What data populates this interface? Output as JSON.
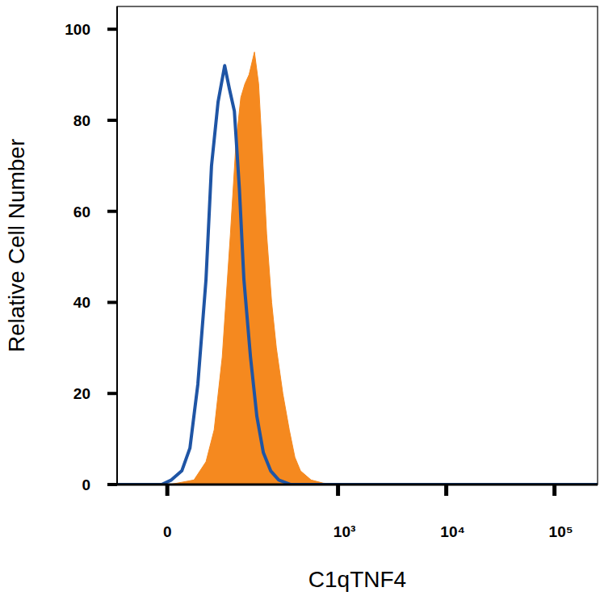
{
  "chart_data": {
    "type": "area",
    "x_label": "C1qTNF4",
    "y_label": "Relative Cell Number",
    "log": "x",
    "xlim": [
      -68,
      250000
    ],
    "xticks": [
      0,
      {
        "value": 1000,
        "label": "10³"
      },
      {
        "value": 10000,
        "label": "10⁴"
      },
      {
        "value": 100000,
        "label": "10⁵"
      }
    ],
    "ylim": [
      0,
      105
    ],
    "yticks": [
      0,
      20,
      40,
      60,
      80,
      100
    ],
    "series": [
      {
        "type": "area",
        "color": "#f5891f",
        "x": [
          -68,
          2.7,
          16.6,
          31.7,
          48.7,
          62,
          77,
          94.5,
          108,
          121,
          133,
          146,
          165,
          181,
          198,
          216,
          241,
          267,
          307,
          353,
          398,
          449,
          563,
          730,
          1029,
          250000
        ],
        "values": [
          0,
          0,
          0.5,
          1,
          5,
          12,
          28,
          55,
          75,
          85,
          88,
          90,
          95,
          88,
          72,
          55,
          40,
          30,
          20,
          12,
          6,
          3,
          1,
          0.3,
          0,
          0
        ]
      },
      {
        "type": "line",
        "color": "#1f55a5",
        "x": [
          -68,
          -6.4,
          4.6,
          16.6,
          26.5,
          36.9,
          48.7,
          57.5,
          69,
          82,
          92,
          104,
          117,
          130,
          151,
          174,
          201,
          236,
          281,
          365,
          250000
        ],
        "values": [
          0,
          0,
          1,
          3,
          8,
          22,
          45,
          70,
          84,
          92,
          87,
          82,
          65,
          45,
          28,
          15,
          7,
          3,
          1,
          0,
          0
        ]
      }
    ]
  }
}
